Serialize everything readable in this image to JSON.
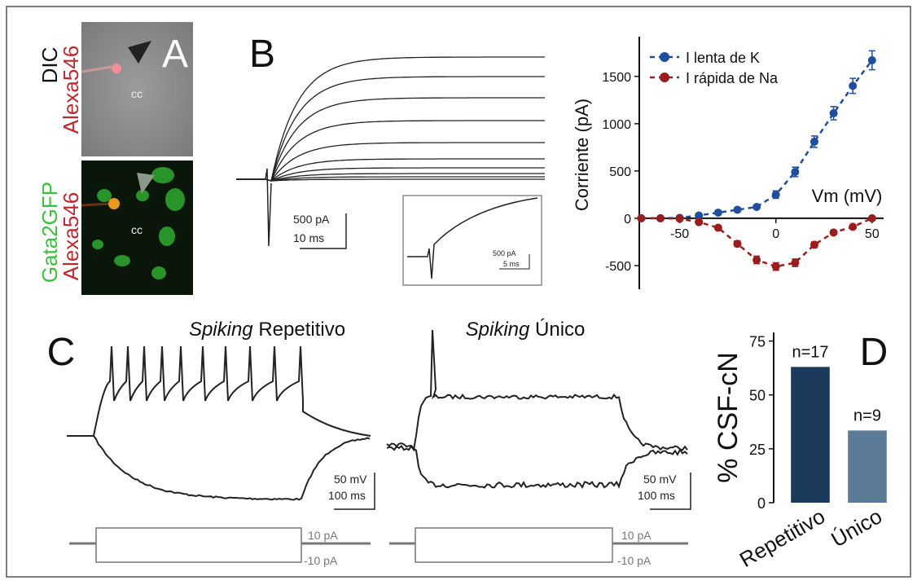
{
  "panel_letters": [
    "A",
    "B",
    "C",
    "D"
  ],
  "panel_a": {
    "top_label_1": "DIC",
    "top_label_2": "Alexa546",
    "bottom_label_1": "Gata2GFP",
    "bottom_label_2": "Alexa546",
    "region_label": "cc"
  },
  "panel_b": {
    "scale_current": "500 pA",
    "scale_time": "10 ms",
    "inset_scale_current": "500 pA",
    "inset_scale_time": "5 ms"
  },
  "panel_c": {
    "titles": [
      {
        "italic": "Spiking",
        "rest": "Repetitivo"
      },
      {
        "italic": "Spiking",
        "rest": "Único"
      }
    ],
    "scale_voltage": "50 mV",
    "scale_time": "100 ms",
    "step_up": "10 pA",
    "step_down": "-10 pA"
  },
  "chart_data": [
    {
      "type": "line",
      "x_label": "Vm (mV)",
      "y_label": "Corriente (pA)",
      "x": [
        -70,
        -60,
        -50,
        -40,
        -30,
        -20,
        -10,
        0,
        10,
        20,
        30,
        40,
        50
      ],
      "series": [
        {
          "name": "I lenta de K",
          "color": "#1f4e9c",
          "values": [
            0,
            0,
            5,
            30,
            60,
            90,
            120,
            250,
            490,
            810,
            1110,
            1400,
            1670
          ],
          "errors": [
            10,
            10,
            10,
            15,
            15,
            20,
            20,
            40,
            50,
            60,
            70,
            80,
            100
          ]
        },
        {
          "name": "I rápida de Na",
          "color": "#9b1c1c",
          "values": [
            0,
            0,
            -5,
            -40,
            -100,
            -270,
            -440,
            -510,
            -470,
            -280,
            -150,
            -90,
            0
          ],
          "errors": [
            10,
            10,
            10,
            15,
            20,
            30,
            40,
            40,
            40,
            30,
            20,
            15,
            10
          ]
        }
      ],
      "xlim": [
        -71,
        56
      ],
      "ylim": [
        -750,
        1920
      ],
      "xticks": [
        -50,
        0,
        50
      ],
      "yticks": [
        -500,
        0,
        500,
        1000,
        1500
      ],
      "legend": "upper left",
      "line_style": "dashed"
    },
    {
      "type": "bar",
      "y_label": "% CSF-cN",
      "categories": [
        "Repetitivo",
        "Único"
      ],
      "values": [
        63,
        33.5
      ],
      "annotations": [
        "n=17",
        "n=9"
      ],
      "colors": [
        "#1b3a5c",
        "#5b7b99"
      ],
      "ylim": [
        0,
        79
      ],
      "yticks": [
        0,
        25,
        50,
        75
      ]
    }
  ]
}
